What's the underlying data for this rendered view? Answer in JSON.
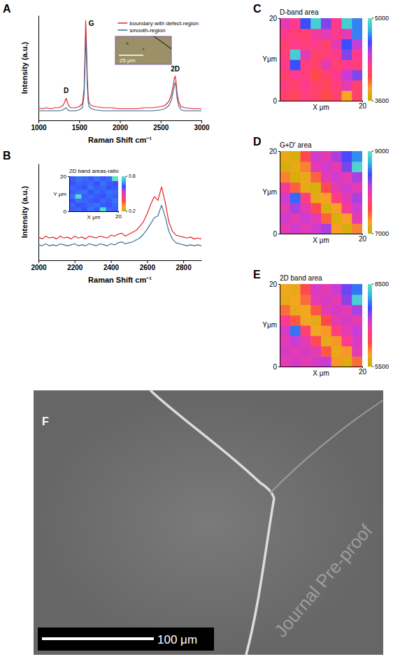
{
  "chart_data": [
    {
      "panel_label": "A",
      "type": "line",
      "xlabel": "Raman Shift cm⁻¹",
      "ylabel": "Intensity (a.u.)",
      "x": [
        1000,
        1050,
        1100,
        1150,
        1200,
        1250,
        1300,
        1320,
        1340,
        1360,
        1380,
        1400,
        1450,
        1500,
        1540,
        1560,
        1570,
        1580,
        1590,
        1600,
        1610,
        1620,
        1650,
        1700,
        1800,
        1900,
        2000,
        2100,
        2200,
        2300,
        2400,
        2500,
        2550,
        2600,
        2630,
        2650,
        2660,
        2670,
        2680,
        2690,
        2700,
        2720,
        2750,
        2800,
        2900,
        3000
      ],
      "series": [
        {
          "name": "boundary with defect-region",
          "color": "#e8202a",
          "values": [
            12,
            11,
            12,
            11,
            12,
            12,
            14,
            17,
            21,
            16,
            13,
            12,
            12,
            13,
            16,
            30,
            60,
            95,
            70,
            40,
            24,
            17,
            14,
            13,
            12,
            12,
            11,
            11,
            11,
            12,
            12,
            13,
            14,
            18,
            24,
            32,
            36,
            41,
            42,
            36,
            27,
            18,
            13,
            12,
            11,
            11
          ]
        },
        {
          "name": "smooth-region",
          "color": "#3e6d94",
          "values": [
            9,
            9,
            9,
            9,
            9,
            9,
            10,
            11,
            12,
            10,
            9,
            9,
            9,
            10,
            12,
            24,
            50,
            80,
            58,
            32,
            18,
            13,
            11,
            10,
            9,
            9,
            9,
            9,
            9,
            9,
            9,
            10,
            11,
            14,
            19,
            26,
            30,
            34,
            36,
            31,
            22,
            14,
            10,
            9,
            9,
            9
          ]
        }
      ],
      "xlim": [
        1000,
        3000
      ],
      "xticks": [
        1000,
        1500,
        2000,
        2500,
        3000
      ],
      "ylim": [
        0,
        100
      ],
      "tick_labels": "x",
      "legend": "upper right",
      "annotations": [
        {
          "text": "D",
          "x": 1340,
          "y": 24
        },
        {
          "text": "G",
          "x": 1650,
          "y": 88
        },
        {
          "text": "2D",
          "x": 2680,
          "y": 45
        }
      ]
    },
    {
      "panel_label": "B",
      "type": "line",
      "xlabel": "Raman Shift cm⁻¹",
      "ylabel": "Intensity (a.u.)",
      "x": [
        2000,
        2020,
        2040,
        2060,
        2080,
        2100,
        2120,
        2140,
        2160,
        2180,
        2200,
        2220,
        2240,
        2260,
        2280,
        2300,
        2320,
        2340,
        2360,
        2380,
        2400,
        2420,
        2440,
        2460,
        2480,
        2500,
        2520,
        2540,
        2560,
        2580,
        2600,
        2620,
        2640,
        2660,
        2680,
        2700,
        2720,
        2740,
        2760,
        2780,
        2800,
        2820,
        2840,
        2860,
        2880,
        2900
      ],
      "series": [
        {
          "color": "#e8202a",
          "values": [
            24,
            22,
            25,
            23,
            24,
            22,
            25,
            23,
            24,
            22,
            25,
            23,
            24,
            22,
            25,
            24,
            23,
            25,
            24,
            23,
            26,
            25,
            27,
            28,
            25,
            27,
            29,
            31,
            35,
            40,
            48,
            58,
            66,
            62,
            76,
            60,
            40,
            30,
            26,
            25,
            24,
            23,
            24,
            22,
            23,
            22
          ]
        },
        {
          "color": "#3e6d94",
          "values": [
            16,
            15,
            17,
            15,
            16,
            15,
            17,
            16,
            15,
            16,
            17,
            15,
            16,
            15,
            17,
            16,
            15,
            17,
            16,
            15,
            17,
            16,
            18,
            19,
            17,
            18,
            19,
            21,
            23,
            27,
            32,
            38,
            44,
            46,
            57,
            45,
            30,
            22,
            18,
            17,
            16,
            15,
            16,
            15,
            16,
            15
          ]
        }
      ],
      "xlim": [
        2000,
        2900
      ],
      "xticks": [
        2000,
        2200,
        2400,
        2600,
        2800
      ],
      "ylim": [
        0,
        100
      ],
      "tick_labels": "x"
    },
    {
      "type": "heatmap",
      "title": "2D band areas-ratio",
      "xlabel": "X μm",
      "ylabel": "Y μm",
      "xlim": [
        0,
        20
      ],
      "ylim": [
        0,
        20
      ],
      "xticks": [
        20
      ],
      "yticks": [
        0,
        20
      ],
      "z": [
        [
          0.64,
          0.65,
          0.63,
          0.66,
          0.64,
          0.78,
          0.65,
          0.64
        ],
        [
          0.65,
          0.63,
          0.64,
          0.65,
          0.66,
          0.64,
          0.63,
          0.65
        ],
        [
          0.63,
          0.66,
          0.65,
          0.64,
          0.63,
          0.65,
          0.64,
          0.66
        ],
        [
          0.66,
          0.78,
          0.64,
          0.65,
          0.64,
          0.63,
          0.65,
          0.64
        ],
        [
          0.64,
          0.65,
          0.66,
          0.63,
          0.65,
          0.64,
          0.66,
          0.65
        ],
        [
          0.65,
          0.64,
          0.63,
          0.66,
          0.64,
          0.65,
          0.63,
          0.64
        ],
        [
          0.63,
          0.65,
          0.64,
          0.65,
          0.63,
          0.66,
          0.64,
          0.62
        ],
        [
          0.64,
          0.66,
          0.65,
          0.64,
          0.66,
          0.64,
          0.65,
          0.8
        ]
      ],
      "colorbar": {
        "range": [
          0.2,
          0.8
        ],
        "ticks": [
          0.2,
          0.8
        ],
        "colors": [
          "#c9b000",
          "#f5a623",
          "#ff4a4a",
          "#ff3a8c",
          "#c83cd8",
          "#3a4dff",
          "#2fb8e6",
          "#5fe3c4"
        ]
      }
    },
    {
      "panel_label": "C",
      "type": "heatmap",
      "title": "D-band area",
      "xlabel": "X μm",
      "ylabel": "Yμm",
      "xlim": [
        0,
        20
      ],
      "ylim": [
        0,
        20
      ],
      "xticks": [
        20
      ],
      "yticks": [
        0,
        20
      ],
      "z": [
        [
          4100,
          4050,
          4150,
          4100,
          4000,
          4100,
          3800,
          4100
        ],
        [
          4150,
          4100,
          4200,
          4100,
          4050,
          4150,
          4300,
          4100
        ],
        [
          4100,
          4200,
          4150,
          4000,
          4100,
          4200,
          4400,
          4500
        ],
        [
          4200,
          4600,
          4150,
          4100,
          4300,
          4100,
          4200,
          4150
        ],
        [
          4150,
          4900,
          4300,
          4100,
          4150,
          4200,
          4500,
          4200
        ],
        [
          4100,
          4200,
          4150,
          4200,
          4100,
          4300,
          4600,
          4400
        ],
        [
          4200,
          4150,
          4100,
          4250,
          4300,
          4200,
          4300,
          4700
        ],
        [
          4300,
          4200,
          4600,
          4900,
          4500,
          4200,
          4900,
          4700
        ]
      ],
      "colorbar": {
        "range": [
          3600,
          5000
        ],
        "ticks": [
          3600,
          5000
        ],
        "colors": [
          "#c9b000",
          "#f5a623",
          "#ff4a4a",
          "#ff3a8c",
          "#c83cd8",
          "#3a4dff",
          "#2fb8e6",
          "#5fe3c4"
        ]
      }
    },
    {
      "panel_label": "D",
      "type": "heatmap",
      "title": "G+D' area",
      "xlabel": "X μm",
      "ylabel": "Yμm",
      "xlim": [
        0,
        20
      ],
      "ylim": [
        0,
        20
      ],
      "xticks": [
        20
      ],
      "yticks": [
        0,
        20
      ],
      "z": [
        [
          8000,
          8100,
          8000,
          8100,
          8200,
          7300,
          7100,
          7400
        ],
        [
          8100,
          8000,
          8100,
          8000,
          7500,
          7100,
          7300,
          8000
        ],
        [
          8000,
          8200,
          8000,
          7600,
          7100,
          7300,
          7900,
          8100
        ],
        [
          8100,
          8500,
          7800,
          7200,
          7300,
          7800,
          8000,
          8200
        ],
        [
          7900,
          7500,
          7200,
          7100,
          7600,
          8000,
          8100,
          8000
        ],
        [
          7400,
          7100,
          7200,
          7500,
          8000,
          8100,
          8000,
          8200
        ],
        [
          7100,
          7200,
          7400,
          8000,
          8100,
          8000,
          8300,
          8900
        ],
        [
          7200,
          7100,
          7600,
          8100,
          8000,
          8200,
          8400,
          8600
        ]
      ],
      "colorbar": {
        "range": [
          7000,
          9000
        ],
        "ticks": [
          7000,
          9000
        ],
        "colors": [
          "#c9b000",
          "#f5a623",
          "#ff4a4a",
          "#ff3a8c",
          "#c83cd8",
          "#3a4dff",
          "#2fb8e6",
          "#5fe3c4"
        ]
      }
    },
    {
      "panel_label": "E",
      "type": "heatmap",
      "title": "2D band area",
      "xlabel": "X μm",
      "ylabel": "Yμm",
      "xlim": [
        0,
        20
      ],
      "ylim": [
        0,
        20
      ],
      "xticks": [
        20
      ],
      "yticks": [
        0,
        20
      ],
      "z": [
        [
          7000,
          7100,
          7000,
          7100,
          7200,
          6000,
          5700,
          6200
        ],
        [
          7100,
          7000,
          7100,
          7000,
          6300,
          5800,
          6000,
          7000
        ],
        [
          7000,
          7200,
          7000,
          6400,
          5800,
          6000,
          6800,
          7100
        ],
        [
          7100,
          7800,
          6600,
          5900,
          6000,
          6700,
          7000,
          7200
        ],
        [
          6800,
          6300,
          5900,
          5800,
          6400,
          7000,
          7100,
          7000
        ],
        [
          6200,
          5800,
          5900,
          6300,
          7000,
          7100,
          7000,
          7300
        ],
        [
          5800,
          5900,
          6200,
          7000,
          7100,
          7000,
          7400,
          8300
        ],
        [
          5900,
          5800,
          6400,
          7100,
          7000,
          7200,
          7500,
          7800
        ]
      ],
      "colorbar": {
        "range": [
          5500,
          8500
        ],
        "ticks": [
          5500,
          8500
        ],
        "colors": [
          "#c9b000",
          "#f5a623",
          "#ff4a4a",
          "#ff3a8c",
          "#c83cd8",
          "#3a4dff",
          "#2fb8e6",
          "#5fe3c4"
        ]
      }
    }
  ],
  "images": [
    {
      "scale_bar": "25 μm"
    },
    {
      "panel_label": "F",
      "scale_bar": "100 μm",
      "watermark": "Journal Pre-proof"
    }
  ]
}
